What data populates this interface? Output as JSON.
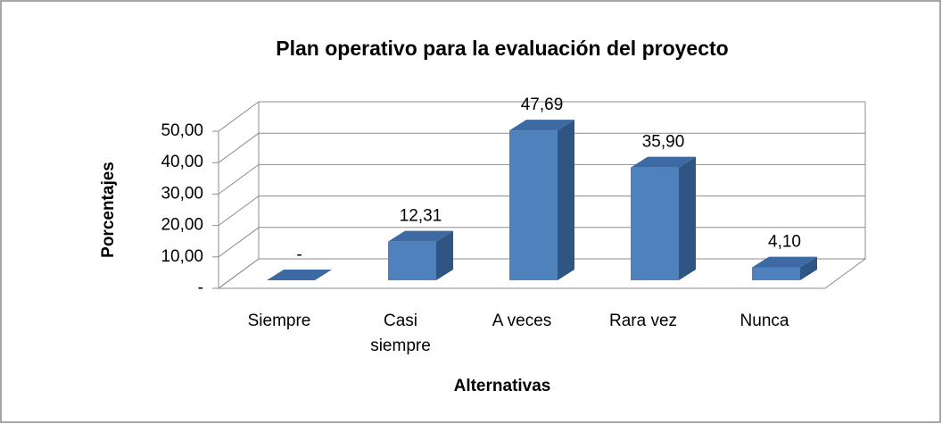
{
  "chart_data": {
    "type": "bar3d",
    "title": "Plan operativo para la evaluación del proyecto",
    "x_label": "Alternativas",
    "y_label": "Porcentajes",
    "categories": [
      "Siempre",
      "Casi siempre",
      "A veces",
      "Rara vez",
      "Nunca"
    ],
    "values": [
      0,
      12.31,
      47.69,
      35.9,
      4.1
    ],
    "value_labels": [
      "-",
      "12,31",
      "47,69",
      "35,90",
      "4,10"
    ],
    "color": "#4f81bd",
    "ylim": [
      0,
      50
    ],
    "yticks": [
      {
        "value": 0,
        "label": "-"
      },
      {
        "value": 10,
        "label": "10,00"
      },
      {
        "value": 20,
        "label": "20,00"
      },
      {
        "value": 30,
        "label": "30,00"
      },
      {
        "value": 40,
        "label": "40,00"
      },
      {
        "value": 50,
        "label": "50,00"
      }
    ],
    "grid": true
  }
}
